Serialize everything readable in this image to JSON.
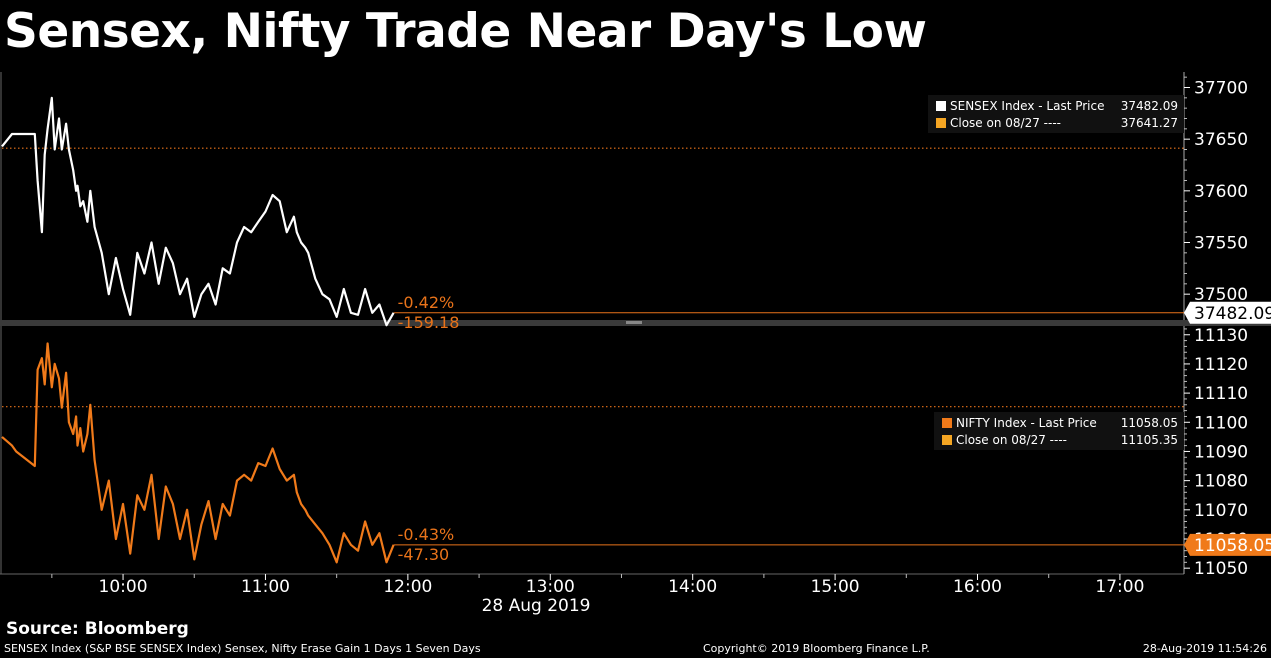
{
  "title": "Sensex, Nifty Trade Near Day's Low",
  "source": "Source: Bloomberg",
  "footer": {
    "description": "SENSEX Index (S&P BSE SENSEX Index) Sensex, Nifty Erase Gain 1 Days 1 Seven Days",
    "copyright": "Copyright© 2019 Bloomberg Finance L.P.",
    "timestamp": "28-Aug-2019 11:54:26"
  },
  "colors": {
    "sensex": "#ffffff",
    "nifty": "#f07a1a",
    "close_line": "#e8731a",
    "axis_text": "#ffffff",
    "background": "#000000"
  },
  "chart_data": [
    {
      "type": "line",
      "x_unit": "hours",
      "xlim": [
        9.15,
        17.45
      ],
      "ylim": [
        37475,
        37715
      ],
      "yticks": [
        37500,
        37550,
        37600,
        37650,
        37700
      ],
      "last_value_label": "37482.09",
      "change_pct": "-0.42%",
      "change_abs": "-159.18",
      "close_value": 37641.27,
      "legend": [
        {
          "name": "SENSEX Index - Last Price",
          "value": "37482.09",
          "color": "#ffffff"
        },
        {
          "name": "Close on 08/27 ----",
          "value": "37641.27",
          "color": "#f5a623"
        }
      ],
      "series": [
        {
          "name": "SENSEX Index - Last Price",
          "x": [
            9.15,
            9.22,
            9.25,
            9.38,
            9.4,
            9.43,
            9.45,
            9.47,
            9.5,
            9.52,
            9.55,
            9.57,
            9.6,
            9.62,
            9.65,
            9.67,
            9.68,
            9.7,
            9.72,
            9.75,
            9.77,
            9.8,
            9.85,
            9.9,
            9.95,
            10.0,
            10.05,
            10.1,
            10.15,
            10.2,
            10.25,
            10.3,
            10.35,
            10.4,
            10.45,
            10.5,
            10.55,
            10.6,
            10.65,
            10.7,
            10.75,
            10.8,
            10.85,
            10.9,
            10.95,
            11.0,
            11.05,
            11.1,
            11.15,
            11.2,
            11.22,
            11.25,
            11.28,
            11.3,
            11.35,
            11.4,
            11.45,
            11.5,
            11.55,
            11.6,
            11.65,
            11.7,
            11.75,
            11.8,
            11.85,
            11.9
          ],
          "values": [
            37643,
            37655,
            37655,
            37655,
            37610,
            37560,
            37635,
            37660,
            37690,
            37640,
            37670,
            37640,
            37665,
            37640,
            37620,
            37600,
            37605,
            37585,
            37590,
            37570,
            37600,
            37565,
            37540,
            37500,
            37535,
            37505,
            37480,
            37540,
            37520,
            37550,
            37510,
            37545,
            37530,
            37500,
            37515,
            37478,
            37500,
            37510,
            37490,
            37525,
            37520,
            37550,
            37565,
            37560,
            37570,
            37580,
            37596,
            37590,
            37560,
            37575,
            37560,
            37550,
            37545,
            37540,
            37515,
            37500,
            37495,
            37478,
            37505,
            37482,
            37480,
            37505,
            37482,
            37490,
            37470,
            37482
          ]
        }
      ]
    },
    {
      "type": "line",
      "x_unit": "hours",
      "xlim": [
        9.15,
        17.45
      ],
      "ylim": [
        11048,
        11133
      ],
      "yticks": [
        11050,
        11060,
        11070,
        11080,
        11090,
        11100,
        11110,
        11120,
        11130
      ],
      "last_value_label": "11058.05",
      "change_pct": "-0.43%",
      "change_abs": "-47.30",
      "close_value": 11105.35,
      "legend": [
        {
          "name": "NIFTY Index - Last Price",
          "value": "11058.05",
          "color": "#f07a1a"
        },
        {
          "name": "Close on 08/27 ----",
          "value": "11105.35",
          "color": "#f5a623"
        }
      ],
      "series": [
        {
          "name": "NIFTY Index - Last Price",
          "x": [
            9.15,
            9.22,
            9.25,
            9.38,
            9.4,
            9.43,
            9.45,
            9.47,
            9.5,
            9.52,
            9.55,
            9.57,
            9.6,
            9.62,
            9.65,
            9.67,
            9.68,
            9.7,
            9.72,
            9.75,
            9.77,
            9.8,
            9.85,
            9.9,
            9.95,
            10.0,
            10.05,
            10.1,
            10.15,
            10.2,
            10.25,
            10.3,
            10.35,
            10.4,
            10.45,
            10.5,
            10.55,
            10.6,
            10.65,
            10.7,
            10.75,
            10.8,
            10.85,
            10.9,
            10.95,
            11.0,
            11.05,
            11.1,
            11.15,
            11.2,
            11.22,
            11.25,
            11.28,
            11.3,
            11.35,
            11.4,
            11.45,
            11.5,
            11.55,
            11.6,
            11.65,
            11.7,
            11.75,
            11.8,
            11.85,
            11.9
          ],
          "values": [
            11095,
            11092,
            11090,
            11085,
            11118,
            11122,
            11113,
            11127,
            11112,
            11120,
            11115,
            11105,
            11117,
            11100,
            11096,
            11102,
            11092,
            11098,
            11090,
            11096,
            11106,
            11087,
            11070,
            11080,
            11060,
            11072,
            11055,
            11075,
            11070,
            11082,
            11060,
            11078,
            11072,
            11060,
            11070,
            11053,
            11065,
            11073,
            11060,
            11072,
            11068,
            11080,
            11082,
            11080,
            11086,
            11085,
            11091,
            11084,
            11080,
            11082,
            11076,
            11072,
            11070,
            11068,
            11065,
            11062,
            11058,
            11052,
            11062,
            11058,
            11056,
            11066,
            11058,
            11062,
            11052,
            11058
          ]
        }
      ]
    }
  ],
  "x_axis": {
    "ticks": [
      {
        "x": 10,
        "label": "10:00"
      },
      {
        "x": 11,
        "label": "11:00"
      },
      {
        "x": 12,
        "label": "12:00"
      },
      {
        "x": 13,
        "label": "13:00"
      },
      {
        "x": 14,
        "label": "14:00"
      },
      {
        "x": 15,
        "label": "15:00"
      },
      {
        "x": 16,
        "label": "16:00"
      },
      {
        "x": 17,
        "label": "17:00"
      }
    ],
    "date_label": "28 Aug 2019"
  }
}
